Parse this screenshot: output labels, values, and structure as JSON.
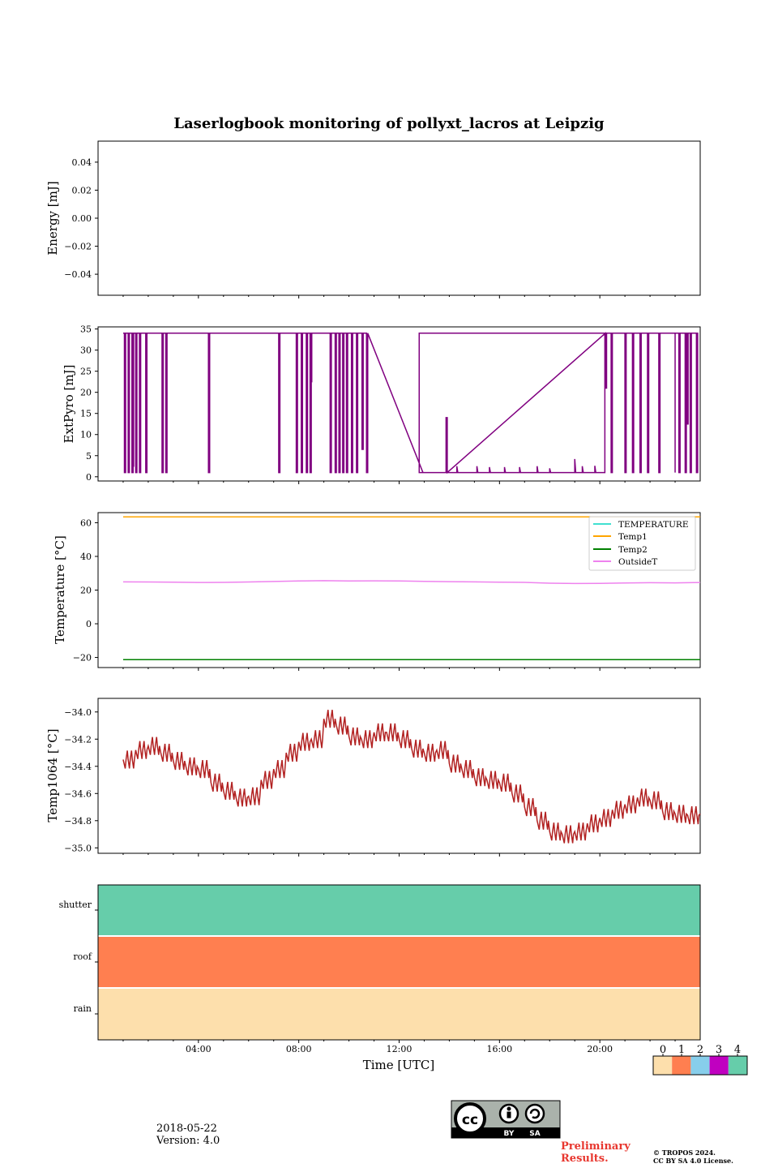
{
  "title": "Laserlogbook monitoring of pollyxt_lacros at Leipzig",
  "colors": {
    "pyro": "#800080",
    "temperature": "#40e0d0",
    "temp1": "#ffa500",
    "temp2": "#008000",
    "outsideT": "#ee82ee",
    "temp1064": "#b22222",
    "flag0": "#fddfac",
    "flag1": "#ff7f50",
    "flag2": "#87ceeb",
    "flag3": "#c000c0",
    "flag4": "#66cdaa"
  },
  "chart_data": [
    {
      "type": "line",
      "ylabel": "Energy [mJ]",
      "ylim": [
        -0.055,
        0.055
      ],
      "yticks": [
        "0.04",
        "0.02",
        "0.00",
        "−0.02",
        "−0.04"
      ],
      "ytick_values": [
        0.04,
        0.02,
        0.0,
        -0.02,
        -0.04
      ],
      "series": []
    },
    {
      "type": "line",
      "ylabel": "ExtPyro [mJ]",
      "ylim": [
        -1,
        35.5
      ],
      "yticks": [
        "35",
        "30",
        "25",
        "20",
        "15",
        "10",
        "5",
        "0"
      ],
      "ytick_values": [
        35,
        30,
        25,
        20,
        15,
        10,
        5,
        0
      ],
      "xlim_hours": [
        0.0,
        24.0
      ],
      "high_value": 34,
      "low_value": 1,
      "step_hours": [
        1.0,
        12.8,
        20.2,
        23.0
      ],
      "drop_hours": [
        1.05,
        1.2,
        1.35,
        1.5,
        1.65,
        1.9,
        2.55,
        2.7,
        4.4,
        7.2,
        7.9,
        8.1,
        8.3,
        8.45,
        9.25,
        9.45,
        9.6,
        9.75,
        9.9,
        10.1,
        10.3,
        10.7,
        12.95,
        13.15,
        13.35,
        13.55,
        13.85,
        20.45,
        21.0,
        21.3,
        21.6,
        21.9,
        22.35,
        23.15,
        23.4,
        23.6,
        23.85
      ],
      "partial_drops": [
        [
          8.45,
          22.5
        ],
        [
          13.85,
          14.0
        ],
        [
          20.2,
          21.0
        ],
        [
          23.45,
          12.5
        ],
        [
          10.5,
          6.5
        ],
        [
          1.35,
          2.5
        ]
      ],
      "noise_spikes": [
        [
          14.3,
          2.5
        ],
        [
          15.1,
          2.5
        ],
        [
          15.6,
          2.3
        ],
        [
          16.2,
          2.3
        ],
        [
          16.8,
          2.3
        ],
        [
          17.5,
          2.5
        ],
        [
          18.0,
          2.0
        ],
        [
          19.0,
          4.2
        ],
        [
          19.3,
          2.5
        ],
        [
          19.8,
          2.6
        ]
      ]
    },
    {
      "type": "line",
      "ylabel": "Temperature [°C]",
      "ylim": [
        -26,
        66
      ],
      "yticks": [
        "60",
        "40",
        "20",
        "0",
        "−20"
      ],
      "ytick_values": [
        60,
        40,
        20,
        0,
        -20
      ],
      "xlim_hours": [
        0.0,
        24.0
      ],
      "legend_position": "upper-right",
      "series": [
        {
          "name": "TEMPERATURE",
          "color_key": "temperature",
          "x_hours": [],
          "values": []
        },
        {
          "name": "Temp1",
          "color_key": "temp1",
          "x_hours": [
            1.0,
            24.0
          ],
          "values": [
            63.5,
            63.5
          ]
        },
        {
          "name": "Temp2",
          "color_key": "temp2",
          "x_hours": [
            1.0,
            24.0
          ],
          "values": [
            -21.3,
            -21.3
          ]
        },
        {
          "name": "OutsideT",
          "color_key": "outsideT",
          "x_hours": [
            1.0,
            2.0,
            3.0,
            4.0,
            5.0,
            6.0,
            7.0,
            8.0,
            9.0,
            10.0,
            11.0,
            12.0,
            13.0,
            14.0,
            15.0,
            16.0,
            17.0,
            18.0,
            19.0,
            20.0,
            21.0,
            22.0,
            23.0,
            24.0
          ],
          "values": [
            24.9,
            24.8,
            24.7,
            24.5,
            24.6,
            24.8,
            25.1,
            25.4,
            25.6,
            25.4,
            25.5,
            25.4,
            25.2,
            25.0,
            24.9,
            24.7,
            24.6,
            24.1,
            23.9,
            24.0,
            24.2,
            24.4,
            24.3,
            24.5
          ]
        }
      ]
    },
    {
      "type": "line",
      "ylabel": "Temp1064 [°C]",
      "ylim": [
        -35.04,
        -33.9
      ],
      "yticks": [
        "−34.0",
        "−34.2",
        "−34.4",
        "−34.6",
        "−34.8",
        "−35.0"
      ],
      "ytick_values": [
        -34.0,
        -34.2,
        -34.4,
        -34.6,
        -34.8,
        -35.0
      ],
      "xlim_hours": [
        0.0,
        24.0
      ],
      "x_hours": [
        1.0,
        1.5,
        2.0,
        2.5,
        3.0,
        3.5,
        4.0,
        4.5,
        5.0,
        5.5,
        6.0,
        6.5,
        7.0,
        7.5,
        8.0,
        8.5,
        9.0,
        9.5,
        10.0,
        10.5,
        11.0,
        11.5,
        12.0,
        12.5,
        13.0,
        13.5,
        14.0,
        14.5,
        15.0,
        15.5,
        16.0,
        16.5,
        17.0,
        17.5,
        18.0,
        18.5,
        19.0,
        19.5,
        20.0,
        20.5,
        21.0,
        21.5,
        22.0,
        22.5,
        23.0,
        23.5,
        24.0
      ],
      "values": [
        -34.35,
        -34.28,
        -34.25,
        -34.3,
        -34.36,
        -34.4,
        -34.42,
        -34.52,
        -34.58,
        -34.63,
        -34.62,
        -34.5,
        -34.42,
        -34.3,
        -34.22,
        -34.2,
        -34.05,
        -34.1,
        -34.18,
        -34.2,
        -34.15,
        -34.15,
        -34.2,
        -34.27,
        -34.3,
        -34.28,
        -34.38,
        -34.42,
        -34.48,
        -34.5,
        -34.52,
        -34.6,
        -34.7,
        -34.8,
        -34.88,
        -34.9,
        -34.88,
        -34.82,
        -34.78,
        -34.72,
        -34.68,
        -34.63,
        -34.65,
        -34.73,
        -34.75,
        -34.76,
        -34.75
      ]
    },
    {
      "type": "heatmap",
      "yticks": [
        "shutter",
        "roof",
        "rain"
      ],
      "rows": [
        {
          "label": "shutter",
          "flag": 4
        },
        {
          "label": "roof",
          "flag": 1
        },
        {
          "label": "rain",
          "flag": 0
        }
      ],
      "xlabel": "Time [UTC]",
      "xlim_hours": [
        0.0,
        24.0
      ],
      "xticks": [
        "04:00",
        "08:00",
        "12:00",
        "16:00",
        "20:00"
      ],
      "xtick_hours": [
        4.0,
        8.0,
        12.0,
        16.0,
        20.0
      ],
      "colorbar": {
        "labels": [
          "0",
          "1",
          "2",
          "3",
          "4"
        ],
        "color_keys": [
          "flag0",
          "flag1",
          "flag2",
          "flag3",
          "flag4"
        ]
      }
    }
  ],
  "footer": {
    "date": "2018-05-22",
    "version": "Version: 4.0",
    "preliminary": "Preliminary",
    "results": "Results.",
    "copyright": "© TROPOS 2024.",
    "license": "CC BY SA 4.0 License.",
    "cc_badge": {
      "cc": "cc",
      "by": "BY",
      "sa": "SA"
    }
  }
}
